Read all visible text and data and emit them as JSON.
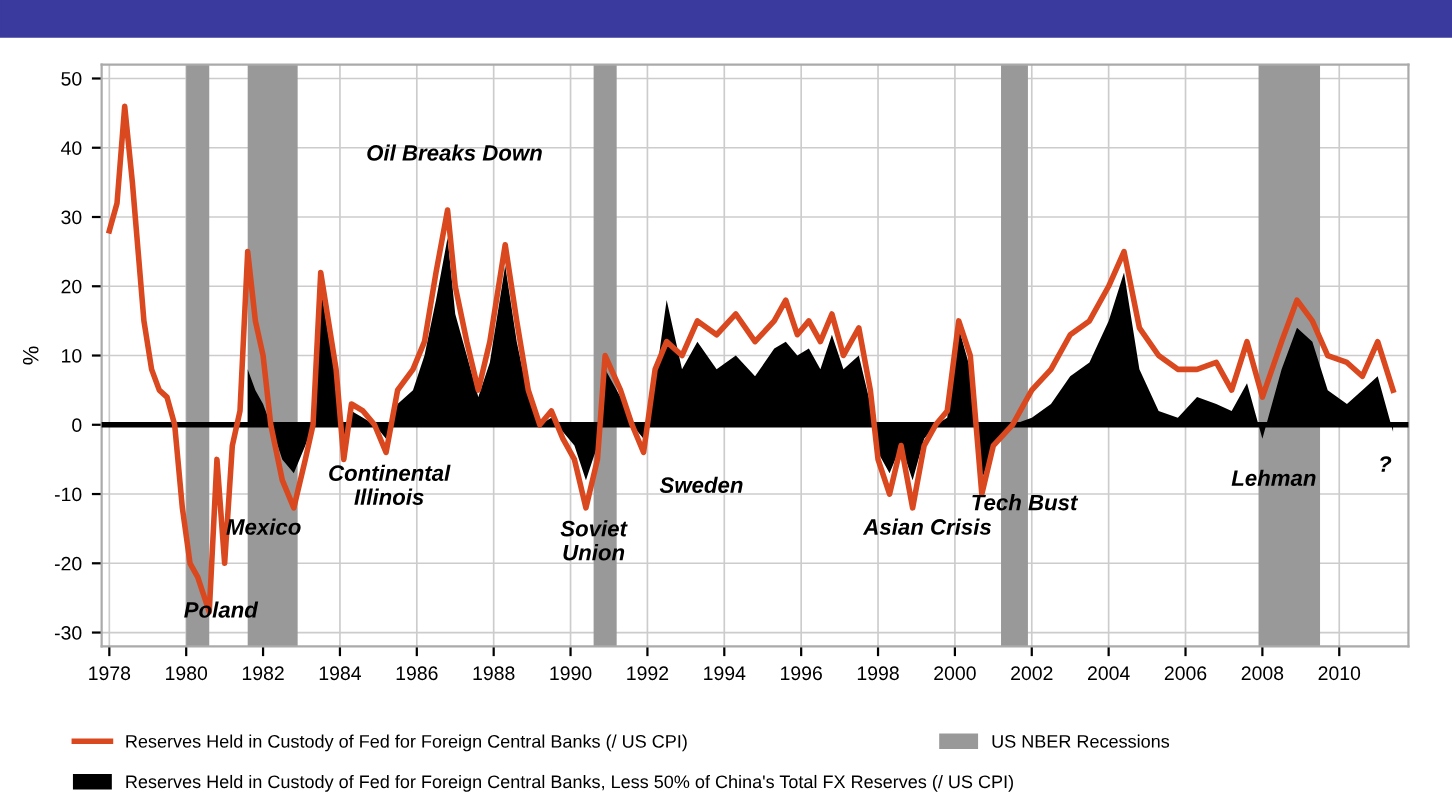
{
  "chart_data": {
    "type": "line",
    "ylabel": "%",
    "xlim": [
      1977.8,
      2011.8
    ],
    "ylim": [
      -32,
      52
    ],
    "xticks": [
      1978,
      1980,
      1982,
      1984,
      1986,
      1988,
      1990,
      1992,
      1994,
      1996,
      1998,
      2000,
      2002,
      2004,
      2006,
      2008,
      2010
    ],
    "yticks": [
      -30,
      -20,
      -10,
      0,
      10,
      20,
      30,
      40,
      50
    ],
    "grid": true,
    "legend": "bottom",
    "series": [
      {
        "type": "area",
        "name": "Reserves Held in Custody of Fed for Foreign Central Banks, Less 50% of China's Total FX Reserves (/ US CPI)",
        "color": "#000000",
        "x": [
          1981.6,
          1981.8,
          1982.0,
          1982.2,
          1982.5,
          1982.8,
          1983.1,
          1983.3,
          1983.5,
          1983.7,
          1983.9,
          1984.1,
          1984.3,
          1984.6,
          1984.9,
          1985.2,
          1985.5,
          1985.9,
          1986.2,
          1986.5,
          1986.8,
          1987.0,
          1987.3,
          1987.6,
          1987.9,
          1988.3,
          1988.6,
          1988.9,
          1989.2,
          1989.5,
          1989.8,
          1990.1,
          1990.4,
          1990.7,
          1990.9,
          1991.3,
          1991.6,
          1991.9,
          1992.2,
          1992.5,
          1992.9,
          1993.3,
          1993.8,
          1994.3,
          1994.8,
          1995.3,
          1995.6,
          1995.9,
          1996.2,
          1996.5,
          1996.8,
          1997.1,
          1997.5,
          1997.8,
          1998.0,
          1998.3,
          1998.6,
          1998.9,
          1999.2,
          1999.5,
          1999.8,
          2000.1,
          2000.4,
          2000.7,
          2001.0,
          2001.5,
          2002.0,
          2002.5,
          2003.0,
          2003.5,
          2004.0,
          2004.4,
          2004.8,
          2005.3,
          2005.8,
          2006.3,
          2006.8,
          2007.2,
          2007.6,
          2008.0,
          2008.5,
          2008.9,
          2009.3,
          2009.7,
          2010.2,
          2010.6,
          2011.0,
          2011.4
        ],
        "values": [
          8,
          5,
          3,
          0,
          -5,
          -7,
          -3,
          0,
          20,
          13,
          7,
          -3,
          2,
          1,
          0,
          -2,
          3,
          5,
          10,
          18,
          27,
          16,
          10,
          4,
          9,
          23,
          12,
          4,
          0,
          1,
          -1,
          -3,
          -8,
          -3,
          8,
          4,
          0,
          -2,
          6,
          18,
          8,
          12,
          8,
          10,
          7,
          11,
          12,
          10,
          11,
          8,
          13,
          8,
          10,
          3,
          -4,
          -7,
          -3,
          -8,
          -2,
          0,
          1,
          14,
          8,
          -8,
          -3,
          0,
          1,
          3,
          7,
          9,
          15,
          22,
          8,
          2,
          1,
          4,
          3,
          2,
          6,
          -2,
          8,
          14,
          12,
          5,
          3,
          5,
          7,
          -1
        ]
      },
      {
        "name": "Reserves Held in Custody of Fed for Foreign Central Banks (/ US CPI)",
        "color": "#d9481e",
        "x": [
          1978.0,
          1978.2,
          1978.4,
          1978.6,
          1978.9,
          1979.1,
          1979.3,
          1979.5,
          1979.7,
          1979.9,
          1980.1,
          1980.3,
          1980.6,
          1980.8,
          1981.0,
          1981.2,
          1981.4,
          1981.6,
          1981.8,
          1982.0,
          1982.2,
          1982.5,
          1982.8,
          1983.1,
          1983.3,
          1983.5,
          1983.7,
          1983.9,
          1984.1,
          1984.3,
          1984.6,
          1984.9,
          1985.2,
          1985.5,
          1985.9,
          1986.2,
          1986.5,
          1986.8,
          1987.0,
          1987.3,
          1987.6,
          1987.9,
          1988.3,
          1988.6,
          1988.9,
          1989.2,
          1989.5,
          1989.8,
          1990.1,
          1990.4,
          1990.7,
          1990.9,
          1991.3,
          1991.6,
          1991.9,
          1992.2,
          1992.5,
          1992.9,
          1993.3,
          1993.8,
          1994.3,
          1994.8,
          1995.3,
          1995.6,
          1995.9,
          1996.2,
          1996.5,
          1996.8,
          1997.1,
          1997.5,
          1997.8,
          1998.0,
          1998.3,
          1998.6,
          1998.9,
          1999.2,
          1999.5,
          1999.8,
          2000.1,
          2000.4,
          2000.7,
          2001.0,
          2001.5,
          2002.0,
          2002.5,
          2003.0,
          2003.5,
          2004.0,
          2004.4,
          2004.8,
          2005.3,
          2005.8,
          2006.3,
          2006.8,
          2007.2,
          2007.6,
          2008.0,
          2008.5,
          2008.9,
          2009.3,
          2009.7,
          2010.2,
          2010.6,
          2011.0,
          2011.4
        ],
        "values": [
          28,
          32,
          46,
          35,
          15,
          8,
          5,
          4,
          0,
          -12,
          -20,
          -22,
          -27,
          -5,
          -20,
          -3,
          2,
          25,
          15,
          10,
          0,
          -8,
          -12,
          -5,
          0,
          22,
          15,
          8,
          -5,
          3,
          2,
          0,
          -4,
          5,
          8,
          12,
          22,
          31,
          20,
          12,
          5,
          12,
          26,
          15,
          5,
          0,
          2,
          -2,
          -5,
          -12,
          -5,
          10,
          5,
          0,
          -4,
          8,
          12,
          10,
          15,
          13,
          16,
          12,
          15,
          18,
          13,
          15,
          12,
          16,
          10,
          14,
          5,
          -5,
          -10,
          -3,
          -12,
          -3,
          0,
          2,
          15,
          10,
          -10,
          -3,
          0,
          5,
          8,
          13,
          15,
          20,
          25,
          14,
          10,
          8,
          8,
          9,
          5,
          12,
          4,
          12,
          18,
          15,
          10,
          9,
          7,
          12,
          5
        ]
      }
    ],
    "bands": [
      {
        "axis": "x",
        "from": 1980.0,
        "to": 1980.6,
        "label": "US NBER Recessions",
        "color": "#999999"
      },
      {
        "axis": "x",
        "from": 1981.6,
        "to": 1982.9,
        "color": "#999999"
      },
      {
        "axis": "x",
        "from": 1990.6,
        "to": 1991.2,
        "color": "#999999"
      },
      {
        "axis": "x",
        "from": 2001.2,
        "to": 2001.9,
        "color": "#999999"
      },
      {
        "axis": "x",
        "from": 2007.9,
        "to": 2009.5,
        "color": "#999999"
      }
    ],
    "ref_lines": [
      {
        "axis": "y",
        "value": 0,
        "color": "#000000"
      }
    ],
    "annotations": [
      "Oil Breaks Down",
      {
        "text": "Poland",
        "x": 1980.9,
        "y": -27
      },
      "Mexico",
      "Continental\nIllinois",
      {
        "text": "Soviet\nUnion",
        "x": 1990.6,
        "y": -17
      },
      "Sweden",
      "Asian Crisis",
      {
        "text": "Tech Bust",
        "x": 2001.8,
        "y": -11.5
      },
      "Lehman",
      "?"
    ]
  }
}
